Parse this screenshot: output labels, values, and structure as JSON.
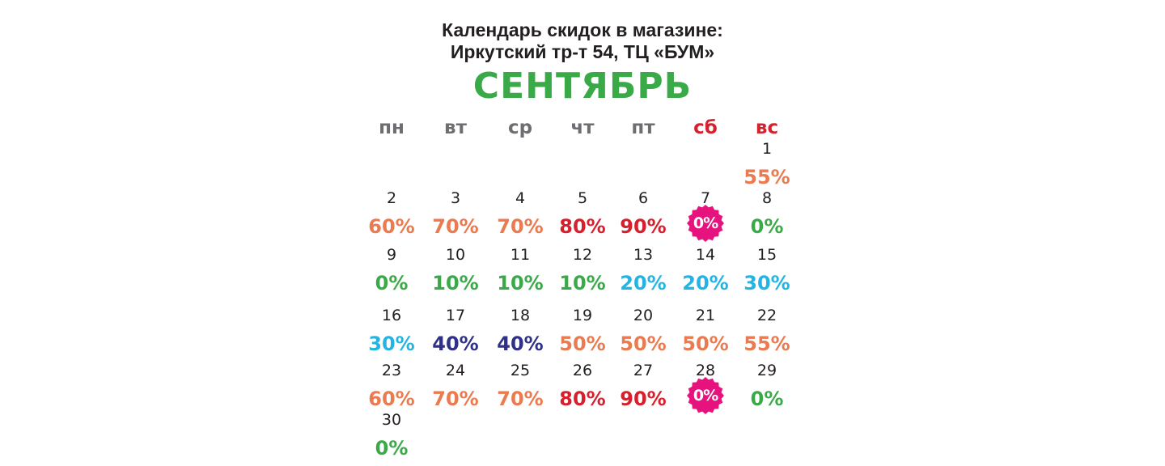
{
  "header": {
    "title_line1": "Календарь скидок в магазине:",
    "title_line2": "Иркутский тр-т 54, ТЦ «БУМ»",
    "month": "СЕНТЯБРЬ"
  },
  "colors": {
    "month_green": "#3aaa48",
    "weekday_gray": "#6d6e71",
    "weekend_red": "#d7202d",
    "orange": "#ea7a4f",
    "red": "#d7202d",
    "green": "#3aaa48",
    "cyan": "#22b5e3",
    "navy": "#2e3187",
    "magenta_badge": "#e6137f"
  },
  "weekdays": [
    {
      "label": "пн",
      "color": "gray"
    },
    {
      "label": "вт",
      "color": "gray"
    },
    {
      "label": "ср",
      "color": "gray"
    },
    {
      "label": "чт",
      "color": "gray"
    },
    {
      "label": "пт",
      "color": "gray"
    },
    {
      "label": "сб",
      "color": "red"
    },
    {
      "label": "вс",
      "color": "red"
    }
  ],
  "days": [
    {
      "day": "1",
      "discount": "55%",
      "color": "orange",
      "badge": false,
      "icon": ""
    },
    {
      "day": "2",
      "discount": "60%",
      "color": "orange",
      "badge": false,
      "icon": ""
    },
    {
      "day": "3",
      "discount": "70%",
      "color": "orange",
      "badge": false,
      "icon": ""
    },
    {
      "day": "4",
      "discount": "70%",
      "color": "orange",
      "badge": false,
      "icon": ""
    },
    {
      "day": "5",
      "discount": "80%",
      "color": "red",
      "badge": false,
      "icon": ""
    },
    {
      "day": "6",
      "discount": "90%",
      "color": "red",
      "badge": false,
      "icon": ""
    },
    {
      "day": "7",
      "discount": "0%",
      "color": "magenta_badge",
      "badge": true,
      "icon": "starburst-badge-icon"
    },
    {
      "day": "8",
      "discount": "0%",
      "color": "green",
      "badge": false,
      "icon": ""
    },
    {
      "day": "9",
      "discount": "0%",
      "color": "green",
      "badge": false,
      "icon": ""
    },
    {
      "day": "10",
      "discount": "10%",
      "color": "green",
      "badge": false,
      "icon": ""
    },
    {
      "day": "11",
      "discount": "10%",
      "color": "green",
      "badge": false,
      "icon": ""
    },
    {
      "day": "12",
      "discount": "10%",
      "color": "green",
      "badge": false,
      "icon": ""
    },
    {
      "day": "13",
      "discount": "20%",
      "color": "cyan",
      "badge": false,
      "icon": ""
    },
    {
      "day": "14",
      "discount": "20%",
      "color": "cyan",
      "badge": false,
      "icon": ""
    },
    {
      "day": "15",
      "discount": "30%",
      "color": "cyan",
      "badge": false,
      "icon": ""
    },
    {
      "day": "16",
      "discount": "30%",
      "color": "cyan",
      "badge": false,
      "icon": ""
    },
    {
      "day": "17",
      "discount": "40%",
      "color": "navy",
      "badge": false,
      "icon": ""
    },
    {
      "day": "18",
      "discount": "40%",
      "color": "navy",
      "badge": false,
      "icon": ""
    },
    {
      "day": "19",
      "discount": "50%",
      "color": "orange",
      "badge": false,
      "icon": ""
    },
    {
      "day": "20",
      "discount": "50%",
      "color": "orange",
      "badge": false,
      "icon": ""
    },
    {
      "day": "21",
      "discount": "50%",
      "color": "orange",
      "badge": false,
      "icon": ""
    },
    {
      "day": "22",
      "discount": "55%",
      "color": "orange",
      "badge": false,
      "icon": ""
    },
    {
      "day": "23",
      "discount": "60%",
      "color": "orange",
      "badge": false,
      "icon": ""
    },
    {
      "day": "24",
      "discount": "70%",
      "color": "orange",
      "badge": false,
      "icon": ""
    },
    {
      "day": "25",
      "discount": "70%",
      "color": "orange",
      "badge": false,
      "icon": ""
    },
    {
      "day": "26",
      "discount": "80%",
      "color": "red",
      "badge": false,
      "icon": ""
    },
    {
      "day": "27",
      "discount": "90%",
      "color": "red",
      "badge": false,
      "icon": ""
    },
    {
      "day": "28",
      "discount": "0%",
      "color": "magenta_badge",
      "badge": true,
      "icon": "starburst-badge-icon"
    },
    {
      "day": "29",
      "discount": "0%",
      "color": "green",
      "badge": false,
      "icon": ""
    },
    {
      "day": "30",
      "discount": "0%",
      "color": "green",
      "badge": false,
      "icon": ""
    }
  ]
}
